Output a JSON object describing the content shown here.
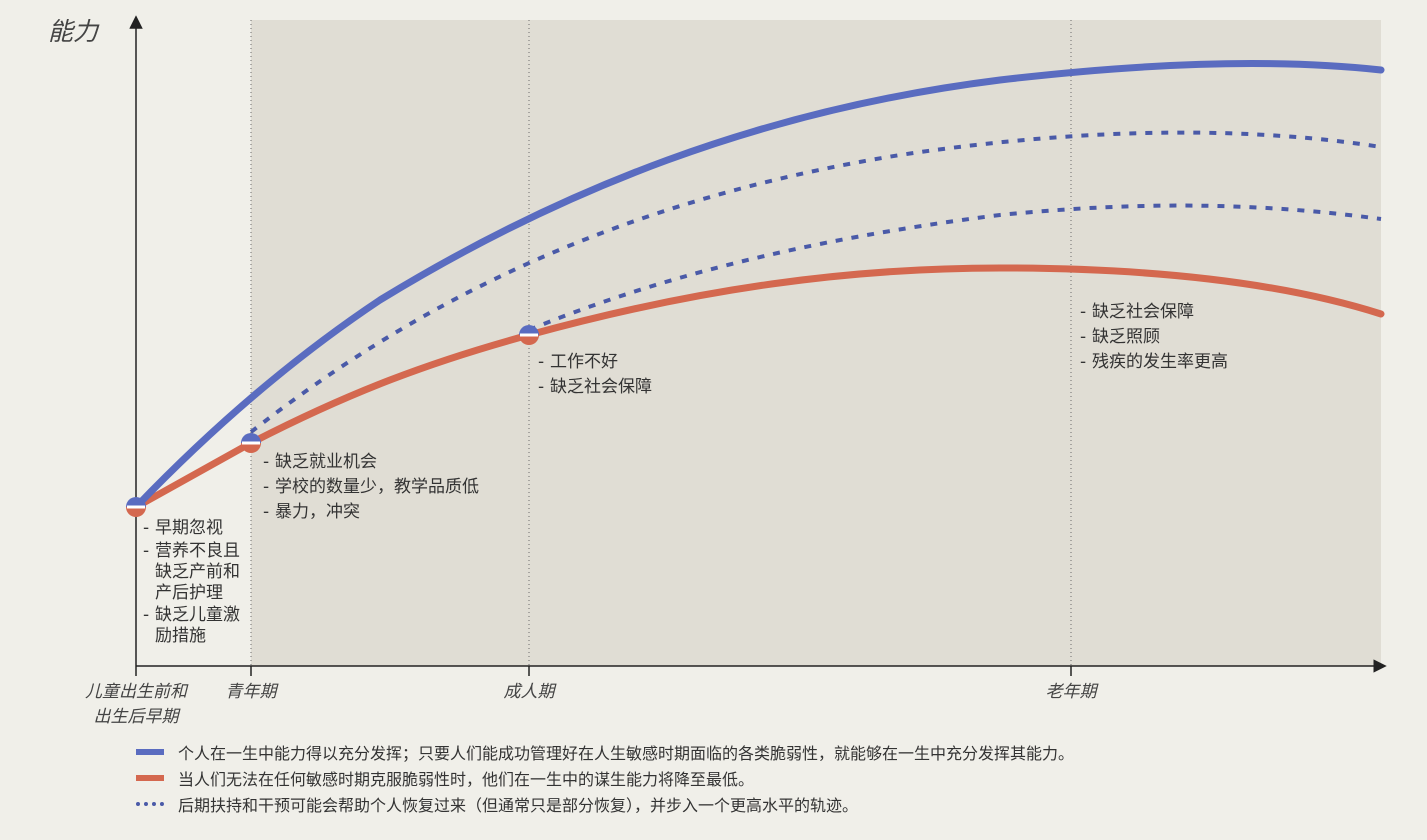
{
  "colors": {
    "full_capacity": "#5a6cc0",
    "minimal_capacity": "#d4684f",
    "recovery": "#4a5aa8",
    "shaded_region": "#e0ddd4",
    "axis": "#222222"
  },
  "y_axis_label": "能力",
  "stages": [
    {
      "label": "儿童出生前和\n出生后早期"
    },
    {
      "label": "青年期"
    },
    {
      "label": "成人期"
    },
    {
      "label": "老年期"
    }
  ],
  "notes": [
    {
      "stage": "儿童出生前和出生后早期",
      "items": [
        "早期忽视",
        "营养不良且\n缺乏产前和\n产后护理",
        "缺乏儿童激\n励措施"
      ]
    },
    {
      "stage": "青年期",
      "items": [
        "缺乏就业机会",
        "学校的数量少，教学品质低",
        "暴力，冲突"
      ]
    },
    {
      "stage": "成人期",
      "items": [
        "工作不好",
        "缺乏社会保障"
      ]
    },
    {
      "stage": "老年期",
      "items": [
        "缺乏社会保障",
        "缺乏照顾",
        "残疾的发生率更高"
      ]
    }
  ],
  "legend": [
    {
      "key": "full",
      "text": "个人在一生中能力得以充分发挥；只要人们能成功管理好在人生敏感时期面临的各类脆弱性，就能够在一生中充分发挥其能力。"
    },
    {
      "key": "minimal",
      "text": "当人们无法在任何敏感时期克服脆弱性时，他们在一生中的谋生能力将降至最低。"
    },
    {
      "key": "recovery",
      "text": "后期扶持和干预可能会帮助个人恢复过来（但通常只是部分恢复），并步入一个更高水平的轨迹。"
    }
  ]
}
